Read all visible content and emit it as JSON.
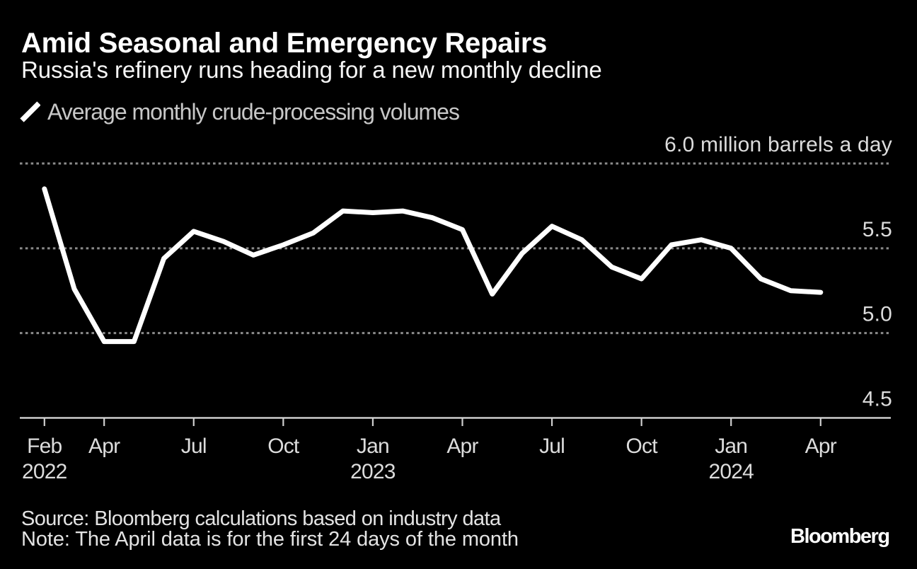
{
  "header": {
    "title": "Amid Seasonal and Emergency Repairs",
    "subtitle": "Russia's refinery runs heading for a new monthly decline"
  },
  "legend": {
    "series_label": "Average monthly crude-processing volumes",
    "swatch_color": "#ffffff"
  },
  "footer": {
    "source": "Source: Bloomberg calculations based on industry data",
    "note": "Note: The April data is for the first 24 days of the month",
    "brand": "Bloomberg"
  },
  "chart_data": {
    "type": "line",
    "title": "Amid Seasonal and Emergency Repairs",
    "subtitle": "Russia's refinery runs heading for a new monthly decline",
    "series": [
      {
        "name": "Average monthly crude-processing volumes",
        "x": [
          "Feb 2022",
          "Mar 2022",
          "Apr 2022",
          "May 2022",
          "Jun 2022",
          "Jul 2022",
          "Aug 2022",
          "Sep 2022",
          "Oct 2022",
          "Nov 2022",
          "Dec 2022",
          "Jan 2023",
          "Feb 2023",
          "Mar 2023",
          "Apr 2023",
          "May 2023",
          "Jun 2023",
          "Jul 2023",
          "Aug 2023",
          "Sep 2023",
          "Oct 2023",
          "Nov 2023",
          "Dec 2023",
          "Jan 2024",
          "Feb 2024",
          "Mar 2024",
          "Apr 2024"
        ],
        "values": [
          5.85,
          5.26,
          4.95,
          4.95,
          5.44,
          5.6,
          5.54,
          5.46,
          5.52,
          5.59,
          5.72,
          5.71,
          5.72,
          5.68,
          5.61,
          5.23,
          5.47,
          5.63,
          5.55,
          5.39,
          5.32,
          5.52,
          5.55,
          5.5,
          5.32,
          5.25,
          5.24
        ]
      }
    ],
    "unit": "million barrels a day",
    "ylabel": "",
    "xlabel": "",
    "ylim": [
      4.5,
      6.0
    ],
    "yticks": [
      {
        "value": 6.0,
        "label": "6.0 million barrels a day",
        "grid": "dotted"
      },
      {
        "value": 5.5,
        "label": "5.5",
        "grid": "dotted"
      },
      {
        "value": 5.0,
        "label": "5.0",
        "grid": "dotted"
      },
      {
        "value": 4.5,
        "label": "4.5",
        "grid": "axis"
      }
    ],
    "xticks": [
      {
        "index": 0,
        "label": "Feb",
        "year": "2022"
      },
      {
        "index": 2,
        "label": "Apr",
        "year": ""
      },
      {
        "index": 5,
        "label": "Jul",
        "year": ""
      },
      {
        "index": 8,
        "label": "Oct",
        "year": ""
      },
      {
        "index": 11,
        "label": "Jan",
        "year": "2023"
      },
      {
        "index": 14,
        "label": "Apr",
        "year": ""
      },
      {
        "index": 17,
        "label": "Jul",
        "year": ""
      },
      {
        "index": 20,
        "label": "Oct",
        "year": ""
      },
      {
        "index": 23,
        "label": "Jan",
        "year": "2024"
      },
      {
        "index": 26,
        "label": "Apr",
        "year": ""
      }
    ],
    "legend_position": "top-left",
    "grid": "horizontal-dotted",
    "line_color": "#ffffff",
    "grid_color": "#8b8b8b",
    "axis_color": "#e0e0e0",
    "tick_color": "#cfcfcf",
    "label_color": "#dcdcdc",
    "background_color": "#000000"
  }
}
